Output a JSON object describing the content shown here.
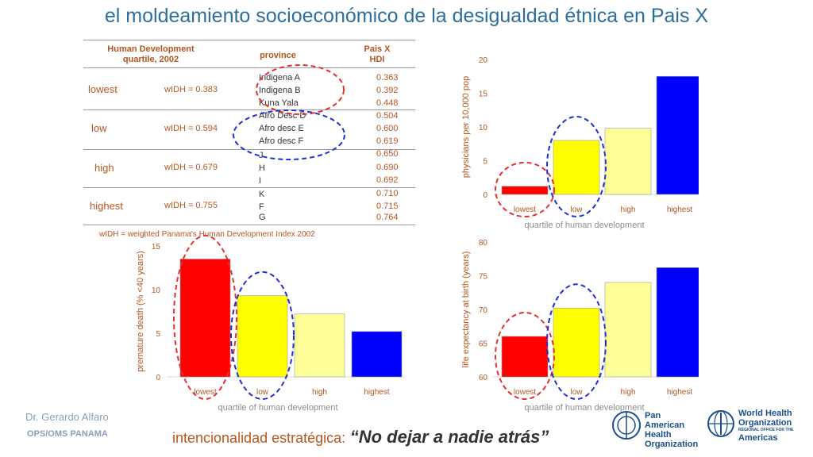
{
  "title": "el moldeamiento socioeconómico de la desigualdad étnica en Pais X",
  "table": {
    "col_quartile": "Human Development quartile, 2002",
    "col_province": "province",
    "col_hdi": "Pais X HDI",
    "groups": [
      {
        "quartile": "lowest",
        "widx": "wIDH = 0.383"
      },
      {
        "quartile": "low",
        "widx": "wIDH = 0.594"
      },
      {
        "quartile": "high",
        "widx": "wIDH = 0.679"
      },
      {
        "quartile": "highest",
        "widx": "wIDH = 0.755"
      }
    ],
    "rows": [
      {
        "province": "Indigena A",
        "hdi": "0.363"
      },
      {
        "province": "Indigena B",
        "hdi": "0.392"
      },
      {
        "province": "Kuna Yala",
        "hdi": "0.448"
      },
      {
        "province": "Afro Desc D",
        "hdi": "0.504"
      },
      {
        "province": "Afro desc E",
        "hdi": "0.600"
      },
      {
        "province": "Afro desc F",
        "hdi": "0.619"
      },
      {
        "province": "J",
        "hdi": "0.650"
      },
      {
        "province": "H",
        "hdi": "0.690"
      },
      {
        "province": "I",
        "hdi": "0.692"
      },
      {
        "province": "K",
        "hdi": "0.710"
      },
      {
        "province": "F",
        "hdi": "0.715"
      },
      {
        "province": "G",
        "hdi": "0.764"
      }
    ],
    "note": "wIDH = weighted Panama's Human Development Index 2002"
  },
  "chart_data": [
    {
      "id": "physicians",
      "type": "bar",
      "categories": [
        "lowest",
        "low",
        "high",
        "highest"
      ],
      "values": [
        1.2,
        8.0,
        9.8,
        17.5
      ],
      "colors": [
        "#ff0000",
        "#ffff00",
        "#ffff99",
        "#0000ff"
      ],
      "ylim": [
        0,
        20
      ],
      "yticks": [
        0,
        5,
        10,
        15,
        20
      ],
      "xlabel": "quartile of human development",
      "ylabel": "physicians per 10,000 pop",
      "circled": [
        "lowest",
        "low"
      ]
    },
    {
      "id": "premature",
      "type": "bar",
      "categories": [
        "lowest",
        "low",
        "high",
        "highest"
      ],
      "values": [
        13.5,
        9.3,
        7.2,
        5.2
      ],
      "colors": [
        "#ff0000",
        "#ffff00",
        "#ffff99",
        "#0000ff"
      ],
      "ylim": [
        0,
        15
      ],
      "yticks": [
        0,
        5,
        10,
        15
      ],
      "xlabel": "quartile of human development",
      "ylabel": "premature death (% <40 years)",
      "circled": [
        "lowest",
        "low"
      ]
    },
    {
      "id": "life",
      "type": "bar",
      "categories": [
        "lowest",
        "low",
        "high",
        "highest"
      ],
      "values": [
        66,
        70.2,
        74,
        76.2
      ],
      "colors": [
        "#ff0000",
        "#ffff00",
        "#ffff99",
        "#0000ff"
      ],
      "ylim": [
        60,
        80
      ],
      "yticks": [
        60,
        65,
        70,
        75,
        80
      ],
      "xlabel": "quartile of human development",
      "ylabel": "life expectancy at birth (years)",
      "circled": [
        "lowest",
        "low"
      ]
    }
  ],
  "footer": {
    "author": "Dr. Gerardo Alfaro",
    "org": "OPS/OMS PANAMA",
    "slogan_lead": "intencionalidad estratégica:",
    "slogan_quote": "“No dejar a nadie atrás”"
  },
  "logos": {
    "paho_1": "Pan American",
    "paho_2": "Health",
    "paho_3": "Organization",
    "who_1": "World Health",
    "who_2": "Organization",
    "who_sub": "REGIONAL OFFICE FOR THE",
    "who_3": "Americas"
  }
}
